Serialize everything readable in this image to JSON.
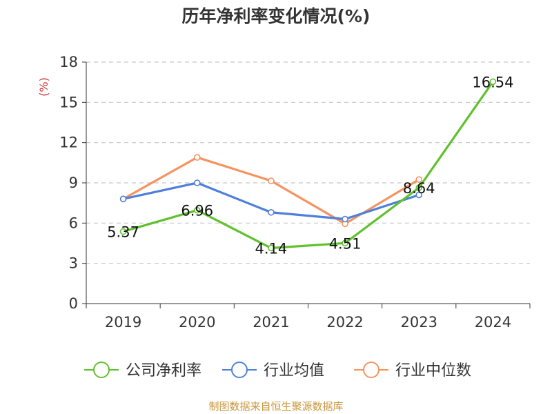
{
  "chart_data": {
    "type": "line",
    "title": "历年净利率变化情况(%)",
    "ylabel": "(%)",
    "xlabel": "",
    "ylim": [
      0,
      18
    ],
    "yticks": [
      0,
      3,
      6,
      9,
      12,
      15,
      18
    ],
    "categories": [
      "2019",
      "2020",
      "2021",
      "2022",
      "2023",
      "2024"
    ],
    "grid": true,
    "legend_position": "bottom",
    "series": [
      {
        "name": "公司净利率",
        "color": "#5ec12d",
        "values": [
          5.37,
          6.96,
          4.14,
          4.51,
          8.64,
          16.54
        ],
        "labels": [
          "5.37",
          "6.96",
          "4.14",
          "4.51",
          "8.64",
          "16.54"
        ]
      },
      {
        "name": "行业均值",
        "color": "#4f7fdb",
        "values": [
          7.8,
          9.0,
          6.8,
          6.3,
          8.1,
          null
        ]
      },
      {
        "name": "行业中位数",
        "color": "#f5935f",
        "values": [
          7.8,
          10.9,
          9.15,
          5.95,
          9.25,
          null
        ]
      }
    ]
  },
  "footer": {
    "source": "制图数据来自恒生聚源数据库"
  },
  "colors": {
    "axis": "#333333",
    "grid": "#c8c8c8",
    "ylabel": "#d43030",
    "source": "#c8963c"
  }
}
